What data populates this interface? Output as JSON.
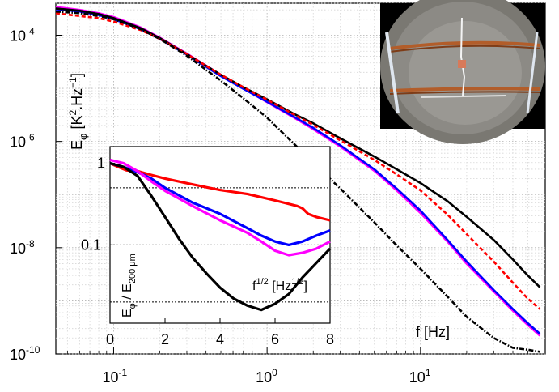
{
  "chart_data": [
    {
      "type": "line",
      "x_scale": "log",
      "y_scale": "log",
      "xlim": [
        0.042,
        65
      ],
      "ylim": [
        1e-10,
        0.0004
      ],
      "xlabel": "f  [Hz]",
      "ylabel": "E_φ  [K^2.Hz^-1]",
      "x_ticks": [
        {
          "value": 0.1,
          "base": "10",
          "exp": "-1"
        },
        {
          "value": 1,
          "base": "10",
          "exp": "0"
        },
        {
          "value": 10,
          "base": "10",
          "exp": "1"
        }
      ],
      "y_ticks": [
        {
          "value": 0.0001,
          "base": "10",
          "exp": "-4"
        },
        {
          "value": 1e-06,
          "base": "10",
          "exp": "-6"
        },
        {
          "value": 1e-08,
          "base": "10",
          "exp": "-8"
        },
        {
          "value": 1e-10,
          "base": "10",
          "exp": "-10"
        }
      ],
      "grid": true,
      "series": [
        {
          "color": "#ff00ff",
          "style": "solid",
          "x": [
            0.042,
            0.06,
            0.08,
            0.1,
            0.15,
            0.2,
            0.3,
            0.5,
            0.7,
            1,
            1.5,
            2,
            3,
            5,
            7,
            10,
            15,
            20,
            30,
            40,
            50,
            60
          ],
          "y": [
            0.00034,
            0.0003,
            0.00026,
            0.00022,
            0.00014,
            9e-05,
            4.5e-05,
            1.8e-05,
            1e-05,
            5.5e-06,
            2.8e-06,
            1.7e-06,
            8e-07,
            2.8e-07,
            1.2e-07,
            4.5e-08,
            1.3e-08,
            5e-09,
            1.5e-09,
            6.5e-10,
            3.5e-10,
            2.2e-10
          ]
        },
        {
          "color": "#0000ff",
          "style": "solid",
          "x": [
            0.042,
            0.06,
            0.08,
            0.1,
            0.15,
            0.2,
            0.3,
            0.5,
            0.7,
            1,
            1.5,
            2,
            3,
            5,
            7,
            10,
            15,
            20,
            30,
            40,
            50,
            60
          ],
          "y": [
            0.00031,
            0.00028,
            0.00024,
            0.0002,
            0.00013,
            8.5e-05,
            4.3e-05,
            1.7e-05,
            9.8e-06,
            5.6e-06,
            2.9e-06,
            1.8e-06,
            8.5e-07,
            3e-07,
            1.3e-07,
            5e-08,
            1.4e-08,
            5.5e-09,
            1.6e-09,
            7e-10,
            3.8e-10,
            2.4e-10
          ]
        },
        {
          "color": "#000000",
          "style": "solid",
          "x": [
            0.042,
            0.06,
            0.08,
            0.1,
            0.15,
            0.2,
            0.3,
            0.5,
            0.7,
            1,
            1.5,
            2,
            3,
            5,
            7,
            10,
            15,
            20,
            30,
            40,
            50,
            60
          ],
          "y": [
            0.00032,
            0.00029,
            0.00025,
            0.00021,
            0.000135,
            8.8e-05,
            4.4e-05,
            1.8e-05,
            1.05e-05,
            6.2e-06,
            3.3e-06,
            2.2e-06,
            1.15e-06,
            5.2e-07,
            3e-07,
            1.65e-07,
            7.5e-08,
            3.8e-08,
            1.4e-08,
            6e-09,
            3e-09,
            1.8e-09
          ]
        },
        {
          "color": "#ff0000",
          "style": "dashed",
          "x": [
            0.042,
            0.06,
            0.08,
            0.1,
            0.15,
            0.2,
            0.3,
            0.5,
            0.7,
            1,
            1.5,
            2,
            3,
            5,
            7,
            10,
            15,
            20,
            30,
            40,
            50,
            60
          ],
          "y": [
            0.00026,
            0.00023,
            0.00021,
            0.00018,
            0.000125,
            8.5e-05,
            4.4e-05,
            1.8e-05,
            1.05e-05,
            6.1e-06,
            3.2e-06,
            2.05e-06,
            1.05e-06,
            4.5e-07,
            2.4e-07,
            1.2e-07,
            4.2e-08,
            1.8e-08,
            5.5e-09,
            2.2e-09,
            1.1e-09,
            7e-10
          ]
        },
        {
          "color": "#000000",
          "style": "dashdot",
          "x": [
            0.042,
            0.06,
            0.08,
            0.1,
            0.15,
            0.2,
            0.3,
            0.5,
            0.7,
            1,
            1.5,
            2,
            3,
            5,
            7,
            10,
            15,
            20,
            30,
            40,
            50,
            60
          ],
          "y": [
            0.00028,
            0.00026,
            0.00023,
            0.0002,
            0.00013,
            8.5e-05,
            4.1e-05,
            1.4e-05,
            6.5e-06,
            2.8e-06,
            9e-07,
            4e-07,
            1.3e-07,
            3e-08,
            1.1e-08,
            4e-09,
            1.2e-09,
            5e-10,
            2e-10,
            1.3e-10,
            1.2e-10,
            1.1e-10
          ]
        }
      ]
    },
    {
      "type": "line",
      "x_scale": "linear",
      "y_scale": "log",
      "xlim": [
        0,
        8
      ],
      "ylim": [
        0.011,
        1.6
      ],
      "xlabel": "f^1/2  [Hz^1/2]",
      "ylabel": "E_φ / E_200 μm",
      "x_ticks": [
        0,
        2,
        4,
        6,
        8
      ],
      "y_ticks": [
        {
          "value": 1,
          "label": "1"
        },
        {
          "value": 0.1,
          "label": "0.1"
        }
      ],
      "dotted_guides": [
        0.5,
        0.1,
        0.02
      ],
      "series": [
        {
          "color": "#ff0000",
          "x": [
            0,
            0.3,
            0.6,
            1,
            1.5,
            2,
            3,
            4,
            5,
            6,
            6.8,
            7,
            7.2,
            7.5,
            8
          ],
          "y": [
            1.0,
            0.9,
            0.82,
            0.8,
            0.72,
            0.65,
            0.55,
            0.47,
            0.42,
            0.35,
            0.3,
            0.28,
            0.24,
            0.22,
            0.2
          ]
        },
        {
          "color": "#0000ff",
          "x": [
            0,
            0.5,
            1,
            1.5,
            2,
            3,
            4,
            5,
            5.5,
            6,
            6.5,
            7,
            7.5,
            8
          ],
          "y": [
            1.0,
            0.9,
            0.78,
            0.65,
            0.5,
            0.33,
            0.24,
            0.16,
            0.13,
            0.11,
            0.1,
            0.11,
            0.13,
            0.15
          ]
        },
        {
          "color": "#ff00ff",
          "x": [
            0,
            0.5,
            1,
            1.5,
            2,
            3,
            4,
            5,
            5.5,
            6,
            6.5,
            7,
            7.5,
            8
          ],
          "y": [
            1.1,
            1.0,
            0.8,
            0.6,
            0.46,
            0.3,
            0.2,
            0.14,
            0.11,
            0.085,
            0.075,
            0.08,
            0.09,
            0.11
          ]
        },
        {
          "color": "#000000",
          "x": [
            0,
            0.5,
            1,
            1.5,
            2,
            2.5,
            3,
            3.5,
            4,
            4.5,
            5,
            5.5,
            6,
            6.5,
            7,
            7.5,
            8
          ],
          "y": [
            1.0,
            0.9,
            0.7,
            0.4,
            0.22,
            0.12,
            0.07,
            0.045,
            0.03,
            0.022,
            0.018,
            0.016,
            0.019,
            0.025,
            0.04,
            0.06,
            0.09
          ]
        }
      ]
    }
  ]
}
